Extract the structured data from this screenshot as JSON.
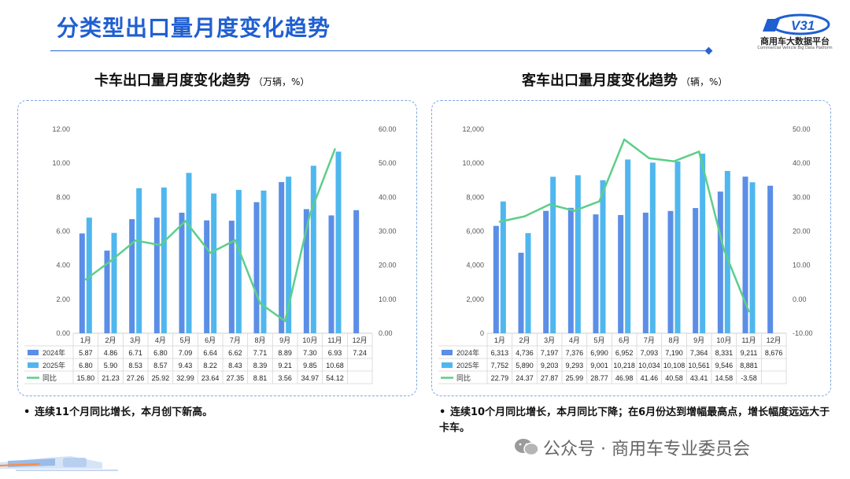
{
  "header": {
    "title": "分类型出口量月度变化趋势",
    "logo_text": "V31",
    "logo_name": "商用车大数据平台",
    "logo_sub": "Commercial Vehicle Big Data Platform"
  },
  "colors": {
    "s2024": "#5b8ee6",
    "s2025": "#4fb7ee",
    "yoy": "#5ccf8a",
    "accent": "#1f5fd1"
  },
  "charts": [
    {
      "id": "truck",
      "title": "卡车出口量月度变化趋势",
      "unit": "（万辆，%）",
      "note": "连续11个月同比增长，本月创下新高。"
    },
    {
      "id": "bus",
      "title": "客车出口量月度变化趋势",
      "unit": "（辆，%）",
      "note": "连续10个月同比增长，本月同比下降；在6月份达到增幅最高点，增长幅度远远大于卡车。"
    }
  ],
  "chart_data": [
    {
      "type": "bar+line",
      "title": "卡车出口量月度变化趋势",
      "unit": "万辆，%",
      "categories": [
        "1月",
        "2月",
        "3月",
        "4月",
        "5月",
        "6月",
        "7月",
        "8月",
        "9月",
        "10月",
        "11月",
        "12月"
      ],
      "series": [
        {
          "name": "2024年",
          "kind": "bar",
          "axis": "left",
          "values": [
            5.87,
            4.86,
            6.71,
            6.8,
            7.09,
            6.64,
            6.62,
            7.71,
            8.89,
            7.3,
            6.93,
            7.24
          ],
          "labels": [
            "5.87",
            "4.86",
            "6.71",
            "6.80",
            "7.09",
            "6.64",
            "6.62",
            "7.71",
            "8.89",
            "7.30",
            "6.93",
            "7.24"
          ]
        },
        {
          "name": "2025年",
          "kind": "bar",
          "axis": "left",
          "values": [
            6.8,
            5.9,
            8.53,
            8.57,
            9.43,
            8.22,
            8.43,
            8.39,
            9.21,
            9.85,
            10.68,
            null
          ],
          "labels": [
            "6.80",
            "5.90",
            "8.53",
            "8.57",
            "9.43",
            "8.22",
            "8.43",
            "8.39",
            "9.21",
            "9.85",
            "10.68",
            ""
          ]
        },
        {
          "name": "同比",
          "kind": "line",
          "axis": "right",
          "values": [
            15.8,
            21.23,
            27.26,
            25.92,
            32.99,
            23.64,
            27.35,
            8.81,
            3.56,
            34.97,
            54.12,
            null
          ],
          "labels": [
            "15.80",
            "21.23",
            "27.26",
            "25.92",
            "32.99",
            "23.64",
            "27.35",
            "8.81",
            "3.56",
            "34.97",
            "54.12",
            ""
          ]
        }
      ],
      "y_left": {
        "min": 0,
        "max": 12,
        "ticks": [
          "0.00",
          "2.00",
          "4.00",
          "6.00",
          "8.00",
          "10.00",
          "12.00"
        ]
      },
      "y_right": {
        "min": 0,
        "max": 60,
        "ticks": [
          "0.00",
          "10.00",
          "20.00",
          "30.00",
          "40.00",
          "50.00",
          "60.00"
        ]
      }
    },
    {
      "type": "bar+line",
      "title": "客车出口量月度变化趋势",
      "unit": "辆，%",
      "categories": [
        "1月",
        "2月",
        "3月",
        "4月",
        "5月",
        "6月",
        "7月",
        "8月",
        "9月",
        "10月",
        "11月",
        "12月"
      ],
      "series": [
        {
          "name": "2024年",
          "kind": "bar",
          "axis": "left",
          "values": [
            6313,
            4736,
            7197,
            7376,
            6990,
            6952,
            7093,
            7190,
            7364,
            8331,
            9211,
            8676
          ],
          "labels": [
            "6,313",
            "4,736",
            "7,197",
            "7,376",
            "6,990",
            "6,952",
            "7,093",
            "7,190",
            "7,364",
            "8,331",
            "9,211",
            "8,676"
          ]
        },
        {
          "name": "2025年",
          "kind": "bar",
          "axis": "left",
          "values": [
            7752,
            5890,
            9203,
            9293,
            9001,
            10218,
            10034,
            10108,
            10561,
            9546,
            8881,
            null
          ],
          "labels": [
            "7,752",
            "5,890",
            "9,203",
            "9,293",
            "9,001",
            "10,218",
            "10,034",
            "10,108",
            "10,561",
            "9,546",
            "8,881",
            ""
          ]
        },
        {
          "name": "同比",
          "kind": "line",
          "axis": "right",
          "values": [
            22.79,
            24.37,
            27.87,
            25.99,
            28.77,
            46.98,
            41.46,
            40.58,
            43.41,
            14.58,
            -3.58,
            null
          ],
          "labels": [
            "22.79",
            "24.37",
            "27.87",
            "25.99",
            "28.77",
            "46.98",
            "41.46",
            "40.58",
            "43.41",
            "14.58",
            "-3.58",
            ""
          ]
        }
      ],
      "y_left": {
        "min": 0,
        "max": 12000,
        "ticks": [
          "0",
          "2,000",
          "4,000",
          "6,000",
          "8,000",
          "10,000",
          "12,000"
        ]
      },
      "y_right": {
        "min": -10,
        "max": 50,
        "ticks": [
          "-10.00",
          "0.00",
          "10.00",
          "20.00",
          "30.00",
          "40.00",
          "50.00"
        ]
      }
    }
  ],
  "footer": {
    "wechat_text": "公众号 · 商用车专业委员会"
  }
}
